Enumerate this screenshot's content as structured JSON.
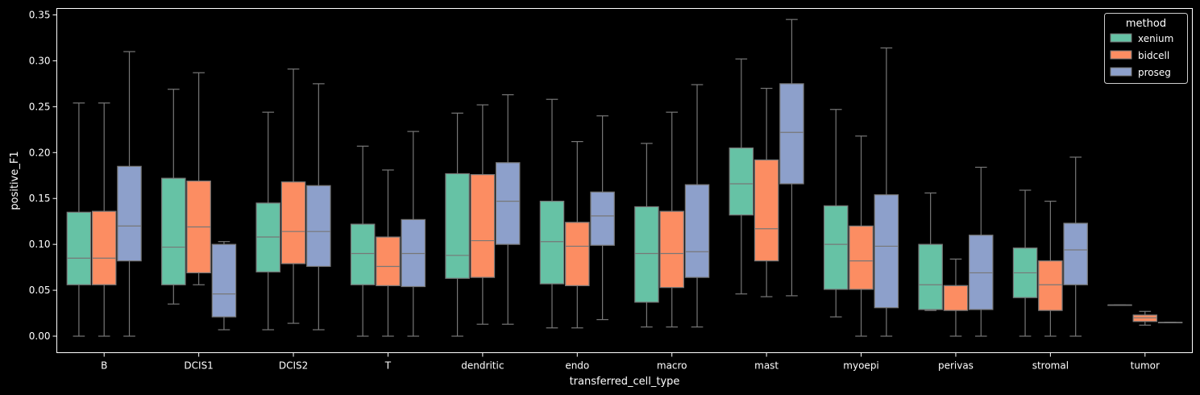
{
  "chart_data": {
    "type": "box",
    "title": "",
    "xlabel": "transferred_cell_type",
    "ylabel": "positive_F1",
    "ylim": [
      -0.018,
      0.357
    ],
    "yticks": [
      0.0,
      0.05,
      0.1,
      0.15,
      0.2,
      0.25,
      0.3,
      0.35
    ],
    "ytick_labels": [
      "0.00",
      "0.05",
      "0.10",
      "0.15",
      "0.20",
      "0.25",
      "0.30",
      "0.35"
    ],
    "grid": false,
    "legend": {
      "title": "method",
      "placement": "top-right"
    },
    "categories": [
      "B",
      "DCIS1",
      "DCIS2",
      "T",
      "dendritic",
      "endo",
      "macro",
      "mast",
      "myoepi",
      "perivas",
      "stromal",
      "tumor"
    ],
    "series": [
      {
        "name": "xenium",
        "color": "#66c2a5",
        "boxes": [
          {
            "whislo": 0.0,
            "q1": 0.056,
            "med": 0.085,
            "q3": 0.135,
            "whishi": 0.254
          },
          {
            "whislo": 0.035,
            "q1": 0.056,
            "med": 0.097,
            "q3": 0.172,
            "whishi": 0.269
          },
          {
            "whislo": 0.007,
            "q1": 0.07,
            "med": 0.108,
            "q3": 0.145,
            "whishi": 0.244
          },
          {
            "whislo": 0.0,
            "q1": 0.056,
            "med": 0.09,
            "q3": 0.122,
            "whishi": 0.207
          },
          {
            "whislo": 0.0,
            "q1": 0.063,
            "med": 0.088,
            "q3": 0.177,
            "whishi": 0.243
          },
          {
            "whislo": 0.009,
            "q1": 0.057,
            "med": 0.103,
            "q3": 0.147,
            "whishi": 0.258
          },
          {
            "whislo": 0.01,
            "q1": 0.037,
            "med": 0.09,
            "q3": 0.141,
            "whishi": 0.21
          },
          {
            "whislo": 0.046,
            "q1": 0.132,
            "med": 0.166,
            "q3": 0.205,
            "whishi": 0.302
          },
          {
            "whislo": 0.021,
            "q1": 0.051,
            "med": 0.1,
            "q3": 0.142,
            "whishi": 0.247
          },
          {
            "whislo": 0.028,
            "q1": 0.029,
            "med": 0.056,
            "q3": 0.1,
            "whishi": 0.156
          },
          {
            "whislo": 0.0,
            "q1": 0.042,
            "med": 0.069,
            "q3": 0.096,
            "whishi": 0.159
          },
          {
            "whislo": 0.034,
            "q1": 0.034,
            "med": 0.034,
            "q3": 0.034,
            "whishi": 0.034
          }
        ]
      },
      {
        "name": "bidcell",
        "color": "#fc8d62",
        "boxes": [
          {
            "whislo": 0.0,
            "q1": 0.056,
            "med": 0.085,
            "q3": 0.136,
            "whishi": 0.254
          },
          {
            "whislo": 0.056,
            "q1": 0.069,
            "med": 0.119,
            "q3": 0.169,
            "whishi": 0.287
          },
          {
            "whislo": 0.014,
            "q1": 0.079,
            "med": 0.114,
            "q3": 0.168,
            "whishi": 0.291
          },
          {
            "whislo": 0.0,
            "q1": 0.055,
            "med": 0.076,
            "q3": 0.108,
            "whishi": 0.181
          },
          {
            "whislo": 0.013,
            "q1": 0.064,
            "med": 0.104,
            "q3": 0.176,
            "whishi": 0.252
          },
          {
            "whislo": 0.009,
            "q1": 0.055,
            "med": 0.098,
            "q3": 0.124,
            "whishi": 0.212
          },
          {
            "whislo": 0.01,
            "q1": 0.053,
            "med": 0.09,
            "q3": 0.136,
            "whishi": 0.244
          },
          {
            "whislo": 0.043,
            "q1": 0.082,
            "med": 0.117,
            "q3": 0.192,
            "whishi": 0.27
          },
          {
            "whislo": 0.0,
            "q1": 0.051,
            "med": 0.082,
            "q3": 0.12,
            "whishi": 0.218
          },
          {
            "whislo": 0.0,
            "q1": 0.028,
            "med": 0.055,
            "q3": 0.055,
            "whishi": 0.084
          },
          {
            "whislo": 0.0,
            "q1": 0.028,
            "med": 0.056,
            "q3": 0.082,
            "whishi": 0.147
          },
          {
            "whislo": 0.012,
            "q1": 0.016,
            "med": 0.02,
            "q3": 0.023,
            "whishi": 0.027
          }
        ]
      },
      {
        "name": "proseg",
        "color": "#8da0cb",
        "boxes": [
          {
            "whislo": 0.0,
            "q1": 0.082,
            "med": 0.12,
            "q3": 0.185,
            "whishi": 0.31
          },
          {
            "whislo": 0.007,
            "q1": 0.021,
            "med": 0.046,
            "q3": 0.1,
            "whishi": 0.103
          },
          {
            "whislo": 0.007,
            "q1": 0.076,
            "med": 0.114,
            "q3": 0.164,
            "whishi": 0.275
          },
          {
            "whislo": 0.0,
            "q1": 0.054,
            "med": 0.09,
            "q3": 0.127,
            "whishi": 0.223
          },
          {
            "whislo": 0.013,
            "q1": 0.1,
            "med": 0.147,
            "q3": 0.189,
            "whishi": 0.263
          },
          {
            "whislo": 0.018,
            "q1": 0.099,
            "med": 0.131,
            "q3": 0.157,
            "whishi": 0.24
          },
          {
            "whislo": 0.01,
            "q1": 0.064,
            "med": 0.092,
            "q3": 0.165,
            "whishi": 0.274
          },
          {
            "whislo": 0.044,
            "q1": 0.166,
            "med": 0.222,
            "q3": 0.275,
            "whishi": 0.345
          },
          {
            "whislo": 0.0,
            "q1": 0.031,
            "med": 0.098,
            "q3": 0.154,
            "whishi": 0.314
          },
          {
            "whislo": 0.0,
            "q1": 0.029,
            "med": 0.069,
            "q3": 0.11,
            "whishi": 0.184
          },
          {
            "whislo": 0.0,
            "q1": 0.056,
            "med": 0.094,
            "q3": 0.123,
            "whishi": 0.195
          },
          {
            "whislo": 0.015,
            "q1": 0.015,
            "med": 0.015,
            "q3": 0.015,
            "whishi": 0.015
          }
        ]
      }
    ]
  }
}
